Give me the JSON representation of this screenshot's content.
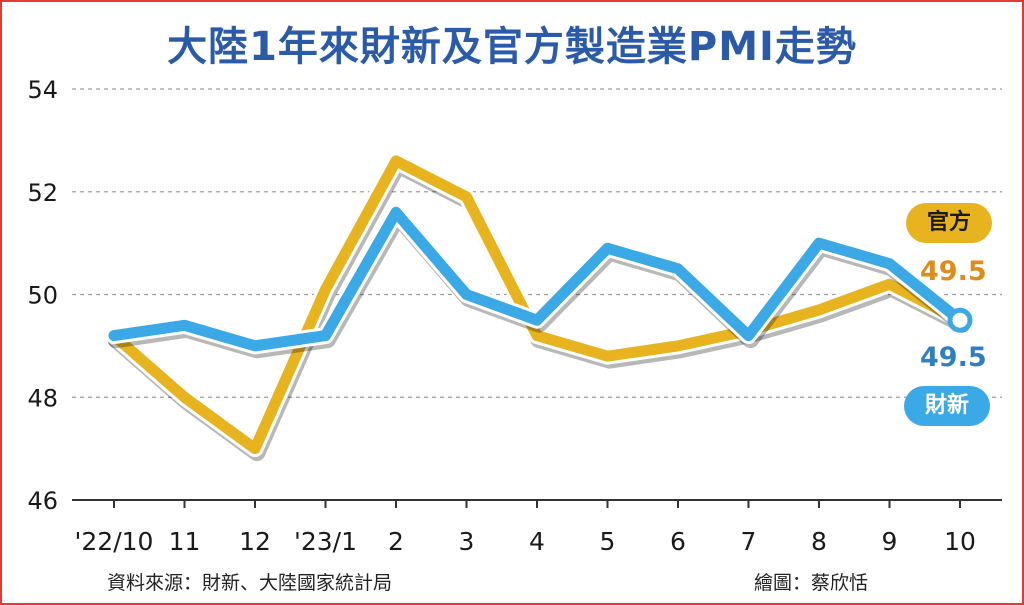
{
  "title": "大陸1年來財新及官方製造業PMI走勢",
  "source_note": "資料來源：財新、大陸國家統計局",
  "credit_note": "繪圖：蔡欣恬",
  "colors": {
    "official": "#e7b420",
    "caixin": "#3aa9e6",
    "official_label": "#de8c1a",
    "caixin_label": "#2f7fc2",
    "grid": "#9e9e9e",
    "frame": "#e53935",
    "title": "#2a5aa8"
  },
  "chart_data": {
    "type": "line",
    "categories": [
      "'22/10",
      "11",
      "12",
      "'23/1",
      "2",
      "3",
      "4",
      "5",
      "6",
      "7",
      "8",
      "9",
      "10"
    ],
    "series": [
      {
        "name": "官方",
        "values": [
          49.2,
          48.0,
          47.0,
          50.1,
          52.6,
          51.9,
          49.2,
          48.8,
          49.0,
          49.3,
          49.7,
          50.2,
          49.5
        ],
        "end_label": "49.5"
      },
      {
        "name": "財新",
        "values": [
          49.2,
          49.4,
          49.0,
          49.2,
          51.6,
          50.0,
          49.5,
          50.9,
          50.5,
          49.2,
          51.0,
          50.6,
          49.5
        ],
        "end_label": "49.5"
      }
    ],
    "y_ticks": [
      "46",
      "48",
      "50",
      "52",
      "54"
    ],
    "ylim": [
      46,
      54
    ],
    "grid": true,
    "legend": "right, beside line ends"
  }
}
